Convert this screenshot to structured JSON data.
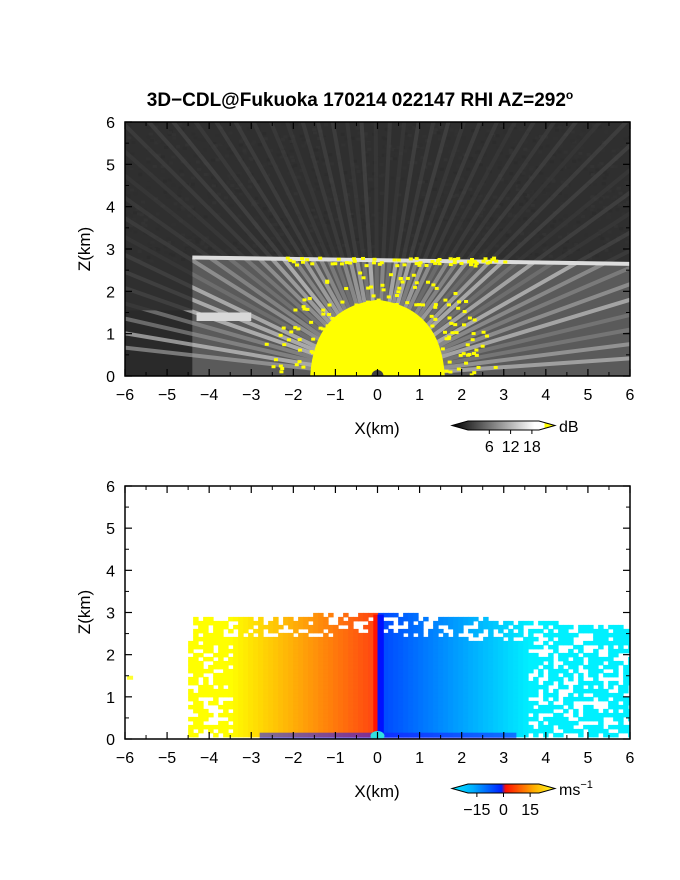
{
  "title": "3D−CDL@Fukuoka 170214 022147 RHI AZ=292",
  "title_sup": "o",
  "chart_data": [
    {
      "type": "heatmap",
      "name": "backscatter",
      "xlabel": "X(km)",
      "ylabel": "Z(km)",
      "xlim": [
        -6,
        6
      ],
      "ylim": [
        0,
        6
      ],
      "xticks": [
        "-6",
        "-5",
        "-4",
        "-3",
        "-2",
        "-1",
        "0",
        "1",
        "2",
        "3",
        "4",
        "5",
        "6"
      ],
      "yticks": [
        "0",
        "1",
        "2",
        "3",
        "4",
        "5",
        "6"
      ],
      "grid": false,
      "colorbar": {
        "unit": "dB",
        "ticks": [
          "6",
          "12",
          "18"
        ],
        "tick_values": [
          6,
          12,
          18
        ],
        "range": [
          0,
          20
        ],
        "colors": [
          "#000000",
          "#ffffff",
          "#ffff00"
        ],
        "scale": "grayscale with yellow above 18 dB"
      },
      "features": {
        "layer_top_km": 2.8,
        "yellow_core_top_km": 1.8,
        "elevated_layer_km": [
          1.3,
          1.5
        ]
      }
    },
    {
      "type": "heatmap",
      "name": "doppler_velocity",
      "xlabel": "X(km)",
      "ylabel": "Z(km)",
      "xlim": [
        -6,
        6
      ],
      "ylim": [
        0,
        6
      ],
      "xticks": [
        "-6",
        "-5",
        "-4",
        "-3",
        "-2",
        "-1",
        "0",
        "1",
        "2",
        "3",
        "4",
        "5",
        "6"
      ],
      "yticks": [
        "0",
        "1",
        "2",
        "3",
        "4",
        "5",
        "6"
      ],
      "grid": false,
      "colorbar": {
        "unit": "ms",
        "unit_sup": "−1",
        "ticks": [
          "−15",
          "0",
          "15"
        ],
        "tick_values": [
          -15,
          0,
          15
        ],
        "range": [
          -20,
          20
        ],
        "colors": [
          "#00e5ff",
          "#0030ff",
          "#ff2000",
          "#ffff00"
        ]
      },
      "features": {
        "echo_top_km": 2.95,
        "positive_side": "x < 0 (orange/yellow, toward +15)",
        "negative_side": "x > 0 (blue/cyan, toward -15)"
      }
    }
  ]
}
